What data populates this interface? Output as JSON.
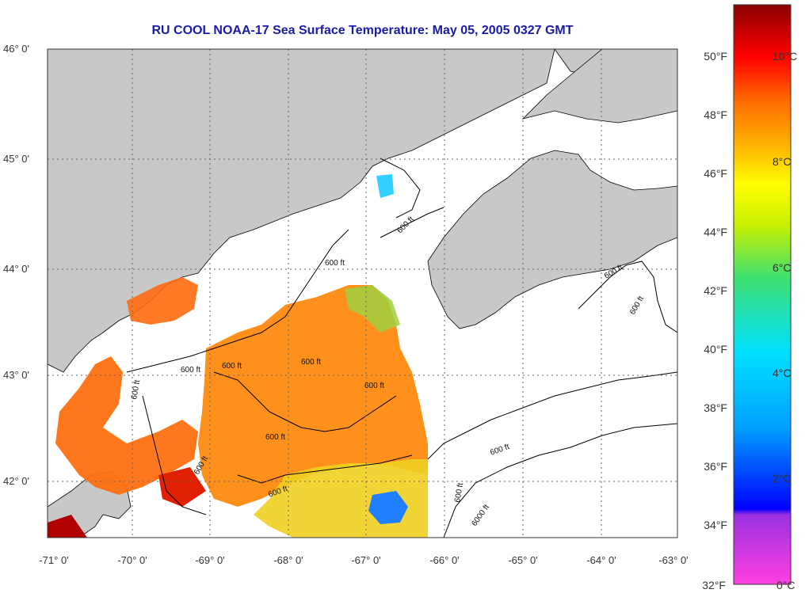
{
  "title": "RU COOL  NOAA-17  Sea Surface Temperature:  May 05, 2005 0327 GMT",
  "lat_ticks": [
    "46° 0'",
    "45° 0'",
    "44° 0'",
    "43° 0'",
    "42° 0'"
  ],
  "lon_ticks": [
    "-71° 0'",
    "-70° 0'",
    "-69° 0'",
    "-68° 0'",
    "-67° 0'",
    "-66° 0'",
    "-65° 0'",
    "-64° 0'",
    "-63° 0'"
  ],
  "colorbar": {
    "fahrenheit": [
      "50°F",
      "48°F",
      "46°F",
      "44°F",
      "42°F",
      "40°F",
      "38°F",
      "36°F",
      "34°F",
      "32°F"
    ],
    "celsius": [
      "10°C",
      "8°C",
      "6°C",
      "4°C",
      "2°C",
      "0°C"
    ]
  },
  "contour_labels": [
    "600 ft",
    "600 ft",
    "600 ft",
    "600 ft",
    "600 ft",
    "600 ft",
    "600 ft",
    "600 ft",
    "600 ft",
    "600 ft",
    "600 ft",
    "600 ft",
    "600 ft",
    "600 ft",
    "6000 ft"
  ],
  "colors": {
    "land": "#c8c8c8",
    "title": "#1a1aa8",
    "grid": "#666666"
  }
}
